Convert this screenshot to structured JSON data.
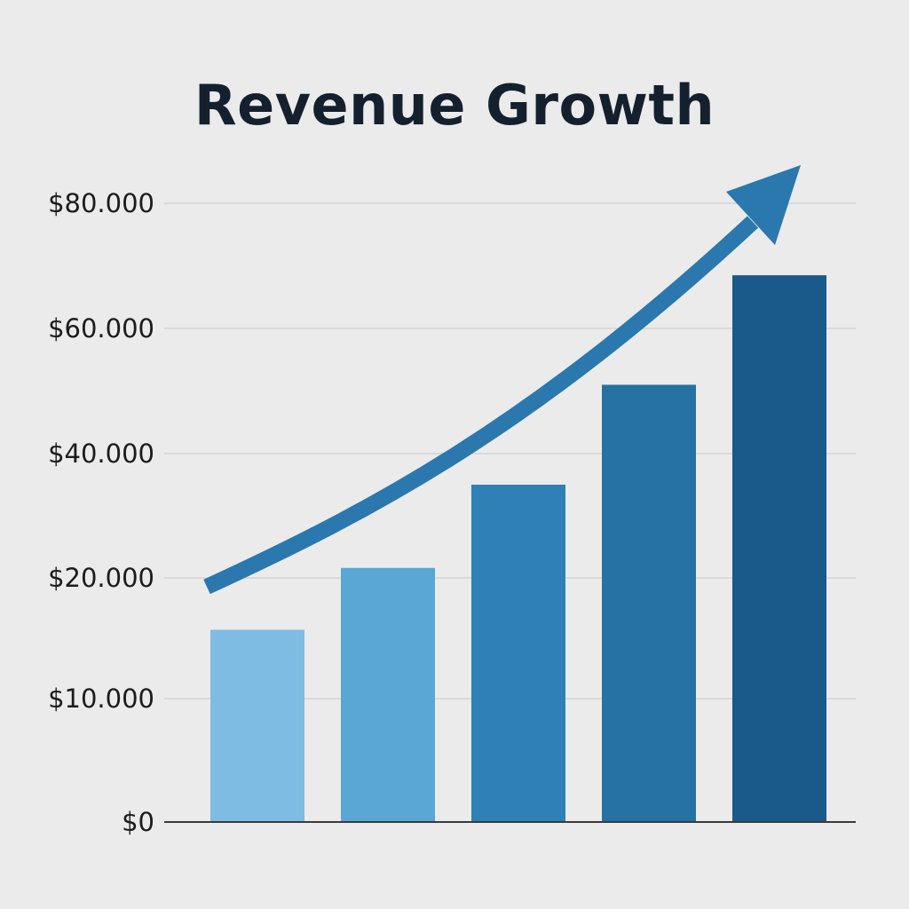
{
  "chart_data": {
    "type": "bar",
    "title": "Revenue Growth",
    "xlabel": "",
    "ylabel": "",
    "categories": [
      "",
      "",
      "",
      "",
      ""
    ],
    "values": [
      15700,
      21600,
      35000,
      51000,
      68500
    ],
    "ylim": [
      0,
      80000
    ],
    "y_ticks": [
      {
        "value": 0,
        "label": "$0"
      },
      {
        "value": 10000,
        "label": "$10.000"
      },
      {
        "value": 20000,
        "label": "$20.000"
      },
      {
        "value": 40000,
        "label": "$40.000"
      },
      {
        "value": 60000,
        "label": "$60.000"
      },
      {
        "value": 80000,
        "label": "$80.000"
      }
    ],
    "grid": true,
    "bar_colors": [
      "#7fbce4",
      "#5aa6d4",
      "#2e80b6",
      "#2672a4",
      "#1a5a8a"
    ],
    "trend_arrow": {
      "present": true,
      "color": "#2a78ad",
      "direction": "up-right"
    }
  }
}
